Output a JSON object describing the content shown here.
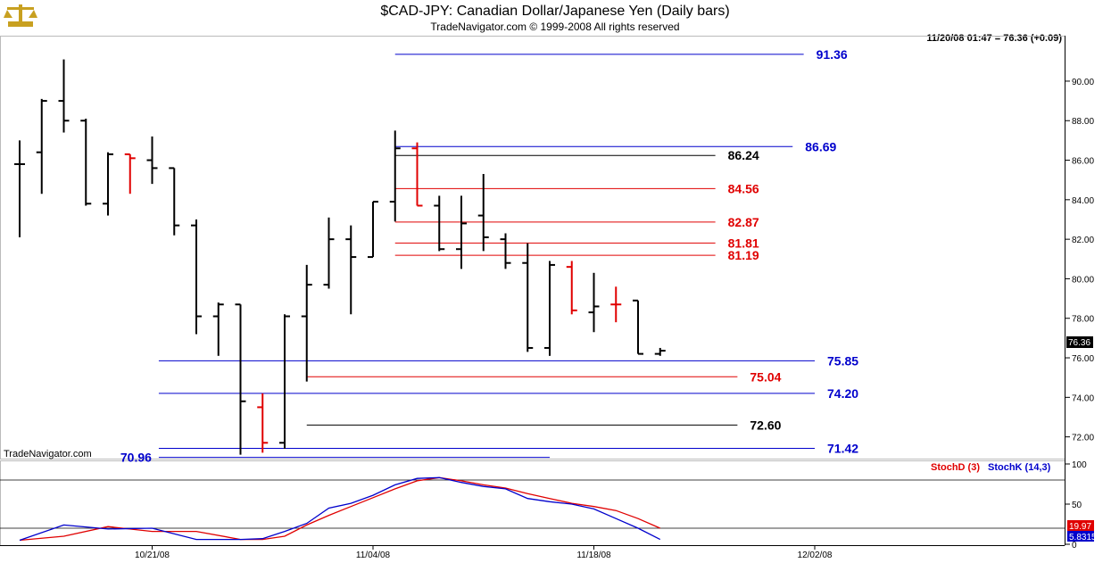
{
  "header": {
    "title": "$CAD-JPY:  Canadian Dollar/Japanese Yen  (Daily bars)",
    "copyright": "TradeNavigator.com © 1999-2008 All rights reserved",
    "readout": "11/20/08 01:47 = 76.36 (+0.09)",
    "watermark": "TradeNavigator.com"
  },
  "indicator": {
    "stochd_label": "StochD (3)",
    "stochk_label": "StochK (14,3)",
    "stochd_value": "19.97",
    "stochk_value": "5.8315",
    "y_ticks": [
      "100",
      "50",
      "0"
    ],
    "upper_line": 80,
    "lower_line": 20
  },
  "colors": {
    "up_bar": "#000000",
    "down_bar": "#e00000",
    "blue_level": "#0000cc",
    "red_level": "#e00000",
    "black_level": "#000000",
    "stochd": "#e00000",
    "stochk": "#0000cc"
  },
  "icons": {
    "logo": "scales-icon"
  },
  "chart_data": [
    {
      "type": "ohlc",
      "title": "$CAD-JPY:  Canadian Dollar/Japanese Yen  (Daily bars)",
      "ylim": [
        70.9,
        92.3
      ],
      "y_ticks": [
        "90.00",
        "88.00",
        "86.00",
        "84.00",
        "82.00",
        "80.00",
        "78.00",
        "76.00",
        "74.00",
        "72.00"
      ],
      "x_ticks": [
        "10/21/08",
        "11/04/08",
        "11/18/08",
        "12/02/08"
      ],
      "x_tick_index": [
        6,
        16,
        26,
        36
      ],
      "last_price_label": "76.36",
      "bars": [
        {
          "o": 85.8,
          "h": 87.0,
          "l": 82.1,
          "c": 85.8,
          "red": false
        },
        {
          "o": 86.4,
          "h": 89.1,
          "l": 84.3,
          "c": 89.0,
          "red": false
        },
        {
          "o": 89.0,
          "h": 91.1,
          "l": 87.4,
          "c": 88.0,
          "red": false
        },
        {
          "o": 88.0,
          "h": 88.1,
          "l": 83.7,
          "c": 83.8,
          "red": false
        },
        {
          "o": 83.8,
          "h": 86.4,
          "l": 83.2,
          "c": 86.3,
          "red": false
        },
        {
          "o": 86.3,
          "h": 86.3,
          "l": 84.3,
          "c": 86.1,
          "red": true
        },
        {
          "o": 86.0,
          "h": 87.2,
          "l": 84.8,
          "c": 85.6,
          "red": false
        },
        {
          "o": 85.6,
          "h": 85.6,
          "l": 82.2,
          "c": 82.7,
          "red": false
        },
        {
          "o": 82.7,
          "h": 83.0,
          "l": 77.2,
          "c": 78.1,
          "red": false
        },
        {
          "o": 78.1,
          "h": 78.8,
          "l": 76.1,
          "c": 78.7,
          "red": false
        },
        {
          "o": 78.7,
          "h": 78.7,
          "l": 71.1,
          "c": 73.8,
          "red": false
        },
        {
          "o": 73.5,
          "h": 74.2,
          "l": 71.2,
          "c": 71.7,
          "red": true
        },
        {
          "o": 71.7,
          "h": 78.2,
          "l": 71.4,
          "c": 78.1,
          "red": false
        },
        {
          "o": 78.1,
          "h": 80.7,
          "l": 74.8,
          "c": 79.7,
          "red": false
        },
        {
          "o": 79.7,
          "h": 83.1,
          "l": 79.5,
          "c": 82.0,
          "red": false
        },
        {
          "o": 82.0,
          "h": 82.7,
          "l": 78.2,
          "c": 81.1,
          "red": false
        },
        {
          "o": 81.1,
          "h": 83.9,
          "l": 81.1,
          "c": 83.9,
          "red": false
        },
        {
          "o": 83.9,
          "h": 87.5,
          "l": 82.9,
          "c": 86.6,
          "red": false
        },
        {
          "o": 86.6,
          "h": 86.9,
          "l": 83.7,
          "c": 83.7,
          "red": true
        },
        {
          "o": 83.7,
          "h": 84.2,
          "l": 81.4,
          "c": 81.5,
          "red": false
        },
        {
          "o": 81.5,
          "h": 84.2,
          "l": 80.5,
          "c": 82.8,
          "red": false
        },
        {
          "o": 83.2,
          "h": 85.3,
          "l": 81.4,
          "c": 82.1,
          "red": false
        },
        {
          "o": 82.0,
          "h": 82.3,
          "l": 80.5,
          "c": 80.8,
          "red": false
        },
        {
          "o": 80.8,
          "h": 81.8,
          "l": 76.3,
          "c": 76.5,
          "red": false
        },
        {
          "o": 76.5,
          "h": 80.9,
          "l": 76.1,
          "c": 80.7,
          "red": false
        },
        {
          "o": 80.6,
          "h": 80.9,
          "l": 78.2,
          "c": 78.4,
          "red": true
        },
        {
          "o": 78.3,
          "h": 80.3,
          "l": 77.3,
          "c": 78.6,
          "red": false
        },
        {
          "o": 78.7,
          "h": 79.6,
          "l": 77.8,
          "c": 78.7,
          "red": true
        },
        {
          "o": 78.9,
          "h": 78.9,
          "l": 76.2,
          "c": 76.2,
          "red": false
        },
        {
          "o": 76.2,
          "h": 76.5,
          "l": 76.1,
          "c": 76.36,
          "red": false
        }
      ],
      "levels": [
        {
          "label": "91.36",
          "value": 91.36,
          "color": "blue",
          "from": 17.0,
          "to": 35.5
        },
        {
          "label": "86.69",
          "value": 86.69,
          "color": "blue",
          "from": 17.0,
          "to": 35.0
        },
        {
          "label": "86.24",
          "value": 86.24,
          "color": "black",
          "from": 17.0,
          "to": 31.5
        },
        {
          "label": "84.56",
          "value": 84.56,
          "color": "red",
          "from": 17.0,
          "to": 31.5
        },
        {
          "label": "82.87",
          "value": 82.87,
          "color": "red",
          "from": 17.0,
          "to": 31.5
        },
        {
          "label": "81.81",
          "value": 81.81,
          "color": "red",
          "from": 17.0,
          "to": 31.5
        },
        {
          "label": "81.19",
          "value": 81.19,
          "color": "red",
          "from": 17.0,
          "to": 31.5
        },
        {
          "label": "75.85",
          "value": 75.85,
          "color": "blue",
          "from": 6.3,
          "to": 36.0
        },
        {
          "label": "75.04",
          "value": 75.04,
          "color": "red",
          "from": 13.0,
          "to": 32.5
        },
        {
          "label": "74.20",
          "value": 74.2,
          "color": "blue",
          "from": 6.3,
          "to": 36.0
        },
        {
          "label": "72.60",
          "value": 72.6,
          "color": "black",
          "from": 13.0,
          "to": 32.5
        },
        {
          "label": "71.42",
          "value": 71.42,
          "color": "blue",
          "from": 6.3,
          "to": 36.0
        },
        {
          "label": "70.96",
          "value": 70.96,
          "color": "blue",
          "from": 6.3,
          "to": 24.0
        }
      ]
    },
    {
      "type": "line",
      "title": "",
      "ylim": [
        0,
        100
      ],
      "x": [
        0,
        2,
        4,
        6,
        8,
        10,
        11,
        12,
        13,
        14,
        15,
        16,
        17,
        18,
        19,
        20,
        21,
        22,
        23,
        24,
        25,
        26,
        27,
        28,
        29
      ],
      "series": [
        {
          "name": "StochD (3)",
          "values": [
            5,
            10,
            22,
            16,
            16,
            6,
            6,
            10,
            24,
            36,
            47,
            58,
            69,
            79,
            83,
            79,
            74,
            70,
            63,
            57,
            51,
            47,
            42,
            32,
            20
          ]
        },
        {
          "name": "StochK (14,3)",
          "values": [
            5,
            24,
            19,
            20,
            6,
            6,
            7,
            16,
            26,
            45,
            51,
            61,
            74,
            82,
            83,
            77,
            72,
            69,
            57,
            53,
            50,
            44,
            32,
            20,
            6
          ]
        }
      ]
    }
  ]
}
